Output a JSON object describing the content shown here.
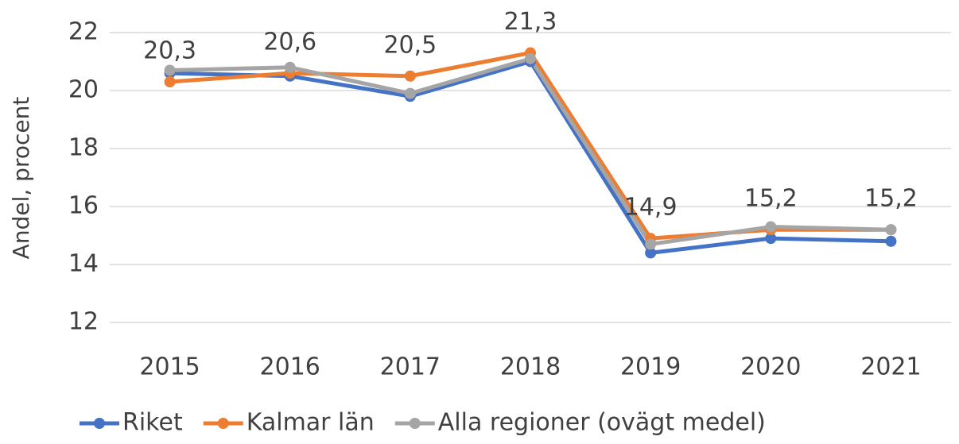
{
  "chart_data": {
    "type": "line",
    "ylabel": "Andel, procent",
    "categories": [
      "2015",
      "2016",
      "2017",
      "2018",
      "2019",
      "2020",
      "2021"
    ],
    "series": [
      {
        "name": "Riket",
        "color": "#4472c4",
        "values": [
          20.6,
          20.5,
          19.8,
          21.0,
          14.4,
          14.9,
          14.8
        ]
      },
      {
        "name": "Kalmar län",
        "color": "#ed7d31",
        "values": [
          20.3,
          20.6,
          20.5,
          21.3,
          14.9,
          15.2,
          15.2
        ],
        "value_labels": [
          "20,3",
          "20,6",
          "20,5",
          "21,3",
          "14,9",
          "15,2",
          "15,2"
        ]
      },
      {
        "name": "Alla regioner (ovägt medel)",
        "color": "#a5a5a5",
        "values": [
          20.7,
          20.8,
          19.9,
          21.1,
          14.7,
          15.3,
          15.2
        ]
      }
    ],
    "ylim": [
      12,
      22
    ],
    "yticks": [
      12,
      14,
      16,
      18,
      20,
      22
    ],
    "grid": true,
    "legend": "bottom"
  }
}
